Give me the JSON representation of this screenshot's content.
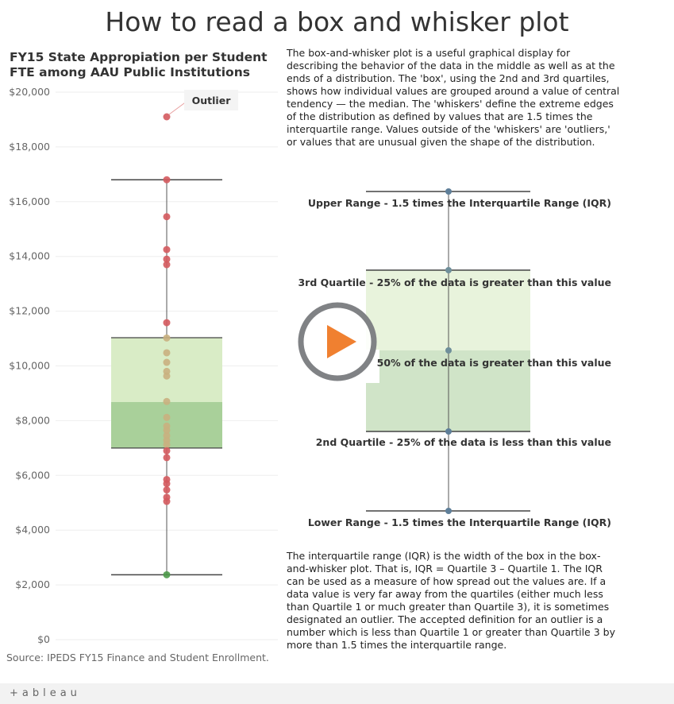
{
  "page_title": "How to read a box and whisker plot",
  "chart_title": "FY15 State Appropiation per Student FTE among AAU Public Institutions",
  "source": "Source: IPEDS FY15 Finance and Student Enrollment.",
  "intro_text": "The box-and-whisker plot is a useful graphical display for describing the behavior of the data in the middle as well as at the ends of a distribution. The 'box', using the 2nd and 3rd quartiles, shows how individual values are grouped around a value of central tendency — the median. The 'whiskers' define the extreme edges of the distribution as defined by values that are 1.5 times the interquartile range. Values outside of the 'whiskers' are 'outliers,' or values that are unusual given the shape of the distribution.",
  "iqr_text": "The interquartile range (IQR) is the width of the box in the box-and-whisker plot. That is, IQR = Quartile 3 – Quartile 1. The IQR can be used as a measure of how spread out the values are. If a data value is very far away from the quartiles (either much less than Quartile 1 or much greater than Quartile 3), it is sometimes designated an outlier. The accepted definition for an outlier is a number which is less than Quartile 1 or greater than Quartile 3 by more than 1.5 times the interquartile range.",
  "diagram": {
    "upper_range_label": "Upper Range - 1.5 times the Interquartile Range (IQR)",
    "q3_label": "3rd Quartile - 25% of the data is greater than this value",
    "median_label": "50% of the data is greater than this value",
    "q2_label": "2nd Quartile - 25% of the data is less than this value",
    "lower_range_label": "Lower Range - 1.5 times the Interquartile Range (IQR)"
  },
  "footer": {
    "logo_text": "+ableau"
  },
  "colors": {
    "point_red": "#d45a5e",
    "point_tan": "#c9b07f",
    "point_green": "#4e9a4a",
    "box_upper": "#d9ecc6",
    "box_lower": "#a9d09a",
    "diagram_box_upper": "#e8f3dc",
    "diagram_box_lower": "#d0e4c8",
    "diagram_point": "#5f7f99",
    "play_orange": "#f08030"
  },
  "chart_data": {
    "type": "box",
    "title": "FY15 State Appropiation per Student FTE among AAU Public Institutions",
    "ylabel": "",
    "ylim": [
      0,
      20000
    ],
    "y_ticks": [
      0,
      2000,
      4000,
      6000,
      8000,
      10000,
      12000,
      14000,
      16000,
      18000,
      20000
    ],
    "y_tick_labels": [
      "$0",
      "$2,000",
      "$4,000",
      "$6,000",
      "$8,000",
      "$10,000",
      "$12,000",
      "$14,000",
      "$16,000",
      "$18,000",
      "$20,000"
    ],
    "grid": true,
    "box": {
      "lower_whisker": 2370,
      "q1": 7000,
      "median": 8680,
      "q3": 11030,
      "upper_whisker": 16800
    },
    "outlier_annotation": {
      "label": "Outlier",
      "value": 19100
    },
    "points": [
      {
        "value": 19100,
        "group": "outside"
      },
      {
        "value": 16800,
        "group": "outside"
      },
      {
        "value": 15450,
        "group": "outside"
      },
      {
        "value": 14250,
        "group": "outside"
      },
      {
        "value": 13900,
        "group": "outside"
      },
      {
        "value": 13700,
        "group": "outside"
      },
      {
        "value": 11580,
        "group": "outside"
      },
      {
        "value": 11020,
        "group": "inside"
      },
      {
        "value": 10480,
        "group": "inside"
      },
      {
        "value": 10130,
        "group": "inside"
      },
      {
        "value": 9800,
        "group": "inside"
      },
      {
        "value": 9630,
        "group": "inside"
      },
      {
        "value": 8700,
        "group": "inside"
      },
      {
        "value": 8120,
        "group": "inside"
      },
      {
        "value": 7800,
        "group": "inside"
      },
      {
        "value": 7650,
        "group": "inside"
      },
      {
        "value": 7450,
        "group": "inside"
      },
      {
        "value": 7280,
        "group": "inside"
      },
      {
        "value": 7120,
        "group": "inside"
      },
      {
        "value": 6900,
        "group": "outside"
      },
      {
        "value": 6650,
        "group": "outside"
      },
      {
        "value": 5850,
        "group": "outside"
      },
      {
        "value": 5700,
        "group": "outside"
      },
      {
        "value": 5470,
        "group": "outside"
      },
      {
        "value": 5200,
        "group": "outside"
      },
      {
        "value": 5050,
        "group": "outside"
      },
      {
        "value": 2370,
        "group": "min"
      }
    ]
  }
}
